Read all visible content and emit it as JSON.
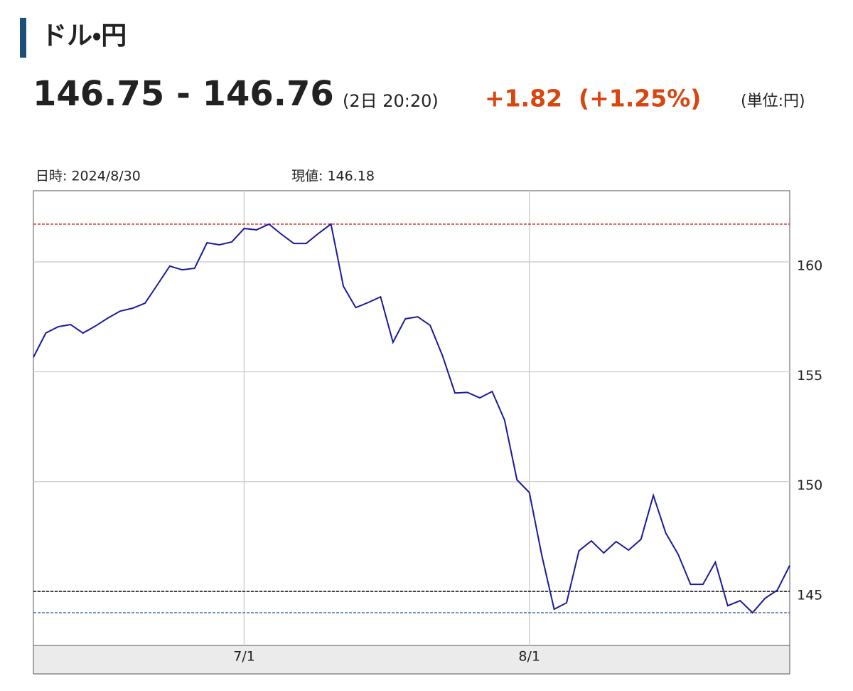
{
  "header": {
    "title": "ドル・円",
    "quote": "146.75 - 146.76",
    "time": "(2日 20:20)",
    "change": "+1.82  (+1.25%)",
    "unit": "(単位:円)"
  },
  "chart_data": {
    "type": "line",
    "info": {
      "date_text": "日時: 2024/8/30",
      "current_text": "現値: 146.18"
    },
    "categories": [
      null,
      null,
      null,
      null,
      null,
      null,
      null,
      null,
      null,
      null,
      null,
      null,
      null,
      null,
      null,
      null,
      null,
      "7/1",
      null,
      null,
      null,
      null,
      null,
      null,
      null,
      null,
      null,
      null,
      null,
      null,
      null,
      null,
      null,
      null,
      null,
      null,
      null,
      null,
      null,
      null,
      "8/1",
      null,
      null,
      null,
      null,
      null,
      null,
      null,
      null,
      null,
      null,
      null,
      null,
      null,
      null,
      null,
      null,
      null,
      null,
      null,
      null,
      null
    ],
    "series": [
      {
        "color": "#1a1a9c",
        "values": [
          155.66,
          156.76,
          157.05,
          157.15,
          156.76,
          157.08,
          157.44,
          157.76,
          157.89,
          158.12,
          158.96,
          159.81,
          159.64,
          159.71,
          160.87,
          160.78,
          160.91,
          161.52,
          161.46,
          161.72,
          161.26,
          160.84,
          160.84,
          161.3,
          161.72,
          158.89,
          157.92,
          158.15,
          158.41,
          156.34,
          157.41,
          157.5,
          157.11,
          155.72,
          154.03,
          154.06,
          153.81,
          154.1,
          152.8,
          150.08,
          149.5,
          146.65,
          144.19,
          144.48,
          146.85,
          147.3,
          146.75,
          147.27,
          146.88,
          147.37,
          149.37,
          147.66,
          146.69,
          145.32,
          145.32,
          146.33,
          144.35,
          144.58,
          144.03,
          144.68,
          145.06,
          146.18
        ]
      }
    ],
    "hlines": [
      {
        "value": 161.72,
        "color": "#cc1f1f"
      },
      {
        "value": 145.0,
        "color": "#000000"
      },
      {
        "value": 144.03,
        "color": "#2a5a8a"
      }
    ],
    "ylim": [
      142.54,
      163.24
    ],
    "yticks": [
      145,
      150,
      155,
      160
    ],
    "grid": true
  }
}
